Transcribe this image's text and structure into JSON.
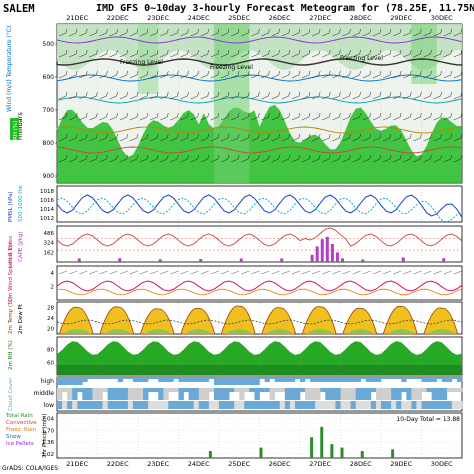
{
  "station": "SALEM",
  "title": "IMD GFS 0~10day 3-hourly Forecast Meteogram for (78.25E, 11.75N)",
  "dates": [
    "21DEC",
    "22DEC",
    "23DEC",
    "24DEC",
    "25DEC",
    "26DEC",
    "27DEC",
    "28DEC",
    "29DEC",
    "30DEC"
  ],
  "footer": "GrADS: COLA/IGES",
  "colors": {
    "rh_green": "#22bb22",
    "temp_orange": "#e07b00",
    "pmsl": "#1a3fd0",
    "h500": "#00b0d0",
    "cape": "#b040c0",
    "gust": "#d01070",
    "cloud_blue": "#6aa8d8",
    "rain": "#2e8b2e"
  },
  "panel_labels": {
    "rh": "RH (%)",
    "wind_temp": "Wind (m/s) Temperature (°C)",
    "pressure_axis": "millibars",
    "pmsl": "PMSL (hPa)",
    "h500": "500-1000 thk",
    "cape": "CAPE (J/kg)",
    "lifted": "Lifted Index",
    "wind10m": "10m Wind Speed & Dir",
    "temp2m": "2m Temp (°C)",
    "dew2m": "2m Dew Pt",
    "rh2m": "2m RH (%)",
    "cloud": "Cloud Cover",
    "precip": "3hr Precip (mm)",
    "precip_legend": [
      "Total Rain",
      "Convective",
      "Freez. Rain",
      "Snow",
      "Ice Pellets"
    ]
  },
  "cross_section": {
    "pressure_ticks": [
      "500",
      "600",
      "700",
      "800",
      "900"
    ],
    "freezing_label": "Freezing Level",
    "contour_labels": [
      "5",
      "10",
      "15",
      "20",
      "5",
      "10"
    ]
  },
  "chart_data": [
    {
      "type": "area",
      "name": "upper-air cross section",
      "ylabel": "millibars",
      "ylim": [
        1000,
        450
      ],
      "yticks": [
        500,
        600,
        700,
        800,
        900
      ]
    },
    {
      "type": "line",
      "ylabel": "PMSL",
      "yticks": [
        1012,
        1014,
        1016,
        1018
      ],
      "series": [
        {
          "name": "PMSL"
        },
        {
          "name": "500-1000 thk"
        }
      ]
    },
    {
      "type": "bar",
      "ylabel": "CAPE",
      "yticks": [
        162,
        324,
        486
      ],
      "ylim": [
        0,
        600
      ]
    },
    {
      "type": "line",
      "ylabel": "10m Wind (m/s)",
      "yticks": [
        2,
        4
      ],
      "ylim": [
        0,
        5
      ]
    },
    {
      "type": "area",
      "ylabel": "2m Temp",
      "yticks": [
        20,
        24,
        28
      ],
      "ylim": [
        18,
        30
      ]
    },
    {
      "type": "area",
      "ylabel": "2m RH (%)",
      "yticks": [
        60,
        80
      ],
      "ylim": [
        40,
        100
      ]
    },
    {
      "type": "area",
      "ylabel": "Cloud Cover",
      "yticks": [
        "high",
        "middle",
        "low"
      ]
    },
    {
      "type": "bar",
      "ylabel": "3hr Precip (mm)",
      "yticks": [
        1.02,
        1.36,
        1.7,
        2.04
      ],
      "ylim": [
        0.9,
        2.2
      ],
      "total_label": "10-Day Total = 13.88"
    }
  ]
}
